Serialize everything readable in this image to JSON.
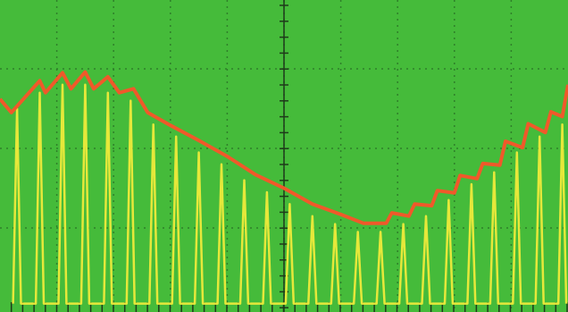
{
  "chart_data": {
    "type": "line",
    "background": "#45bb3a",
    "grid": true,
    "grid_color": "#2f7f2a",
    "xlim": [
      0,
      10
    ],
    "ylim": [
      0,
      4
    ],
    "xticks": [
      1,
      2,
      3,
      4,
      5,
      6,
      7,
      8,
      9
    ],
    "yticks": [
      1,
      2,
      3
    ],
    "series": [
      {
        "color": "#e6e83a",
        "x": [
          0.23,
          0.3,
          0.37,
          0.63,
          0.7,
          0.77,
          1.03,
          1.1,
          1.17,
          1.43,
          1.5,
          1.57,
          1.83,
          1.9,
          1.97,
          2.23,
          2.3,
          2.37,
          2.63,
          2.7,
          2.77,
          3.03,
          3.1,
          3.17,
          3.43,
          3.5,
          3.57,
          3.83,
          3.9,
          3.97,
          4.23,
          4.3,
          4.37,
          4.63,
          4.7,
          4.77,
          5.03,
          5.1,
          5.17,
          5.43,
          5.5,
          5.57,
          5.83,
          5.9,
          5.97,
          6.23,
          6.3,
          6.37,
          6.63,
          6.7,
          6.77,
          7.03,
          7.1,
          7.17,
          7.43,
          7.5,
          7.57,
          7.83,
          7.9,
          7.97,
          8.23,
          8.3,
          8.37,
          8.63,
          8.7,
          8.77,
          9.03,
          9.1,
          9.17,
          9.43,
          9.5,
          9.57,
          9.83,
          9.9,
          9.97
        ],
        "values": [
          0.05,
          2.5,
          0.05,
          0.05,
          2.7,
          0.05,
          0.05,
          2.8,
          0.05,
          0.05,
          2.8,
          0.05,
          0.05,
          2.7,
          0.05,
          0.05,
          2.6,
          0.05,
          0.05,
          2.3,
          0.05,
          0.05,
          2.15,
          0.05,
          0.05,
          1.95,
          0.05,
          0.05,
          1.8,
          0.05,
          0.05,
          1.6,
          0.05,
          0.05,
          1.45,
          0.05,
          0.05,
          1.3,
          0.05,
          0.05,
          1.15,
          0.05,
          0.05,
          1.05,
          0.05,
          0.05,
          0.95,
          0.05,
          0.05,
          0.95,
          0.05,
          0.05,
          1.05,
          0.05,
          0.05,
          1.15,
          0.05,
          0.05,
          1.35,
          0.05,
          0.05,
          1.55,
          0.05,
          0.05,
          1.7,
          0.05,
          0.05,
          1.95,
          0.05,
          0.05,
          2.15,
          0.05,
          0.05,
          2.3,
          0.05
        ]
      },
      {
        "color": "#f0592a",
        "x": [
          0,
          0.2,
          0.7,
          0.8,
          1.1,
          1.25,
          1.5,
          1.65,
          1.9,
          2.1,
          2.35,
          2.6,
          3.0,
          3.5,
          4.0,
          4.5,
          5.0,
          5.5,
          6.0,
          6.4,
          6.8,
          6.9,
          7.2,
          7.3,
          7.6,
          7.7,
          8.0,
          8.1,
          8.4,
          8.5,
          8.8,
          8.9,
          9.2,
          9.3,
          9.6,
          9.7,
          9.9,
          10
        ],
        "values": [
          2.62,
          2.45,
          2.85,
          2.7,
          2.95,
          2.75,
          2.96,
          2.75,
          2.9,
          2.7,
          2.75,
          2.45,
          2.29,
          2.1,
          1.9,
          1.67,
          1.5,
          1.3,
          1.17,
          1.06,
          1.06,
          1.19,
          1.15,
          1.3,
          1.28,
          1.47,
          1.44,
          1.66,
          1.62,
          1.81,
          1.79,
          2.09,
          2.01,
          2.31,
          2.2,
          2.46,
          2.4,
          2.8
        ]
      }
    ]
  }
}
